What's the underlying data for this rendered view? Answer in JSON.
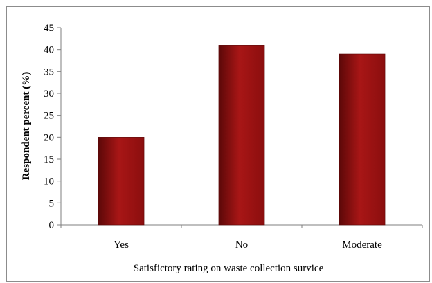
{
  "chart_data": {
    "type": "bar",
    "categories": [
      "Yes",
      "No",
      "Moderate"
    ],
    "values": [
      20,
      41,
      39
    ],
    "xlabel": "Satisfictory rating on waste collection survice",
    "ylabel": "Respondent percent (%)",
    "ylim": [
      0,
      45
    ],
    "yticks": [
      0,
      5,
      10,
      15,
      20,
      25,
      30,
      35,
      40,
      45
    ],
    "grid": false,
    "legend": "none",
    "colors": {
      "bar": "#8b0e0e",
      "bar_highlight": "#a81616",
      "bar_shadow": "#5c0808",
      "axis": "#7f7f7f"
    }
  }
}
